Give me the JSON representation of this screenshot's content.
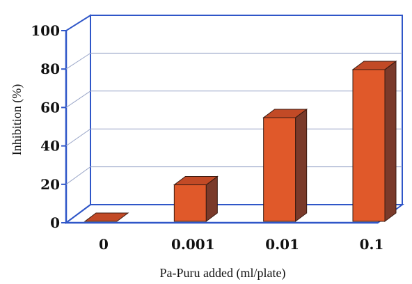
{
  "chart_data": {
    "type": "bar",
    "categories": [
      "0",
      "0.001",
      "0.01",
      "0.1"
    ],
    "values": [
      0,
      19,
      54,
      79
    ],
    "title": "",
    "xlabel": "Pa-Puru added (ml/plate)",
    "ylabel": "Inhibition (%)",
    "ylim": [
      0,
      100
    ],
    "yticks": [
      "0",
      "20",
      "40",
      "60",
      "80",
      "100"
    ],
    "grid": true,
    "style": "3d",
    "colors": {
      "bar_front": "#e0592a",
      "bar_top": "#c24a26",
      "bar_side": "#7a3a2a",
      "frame": "#2f56c8",
      "grid": "#9aa6c8"
    }
  }
}
